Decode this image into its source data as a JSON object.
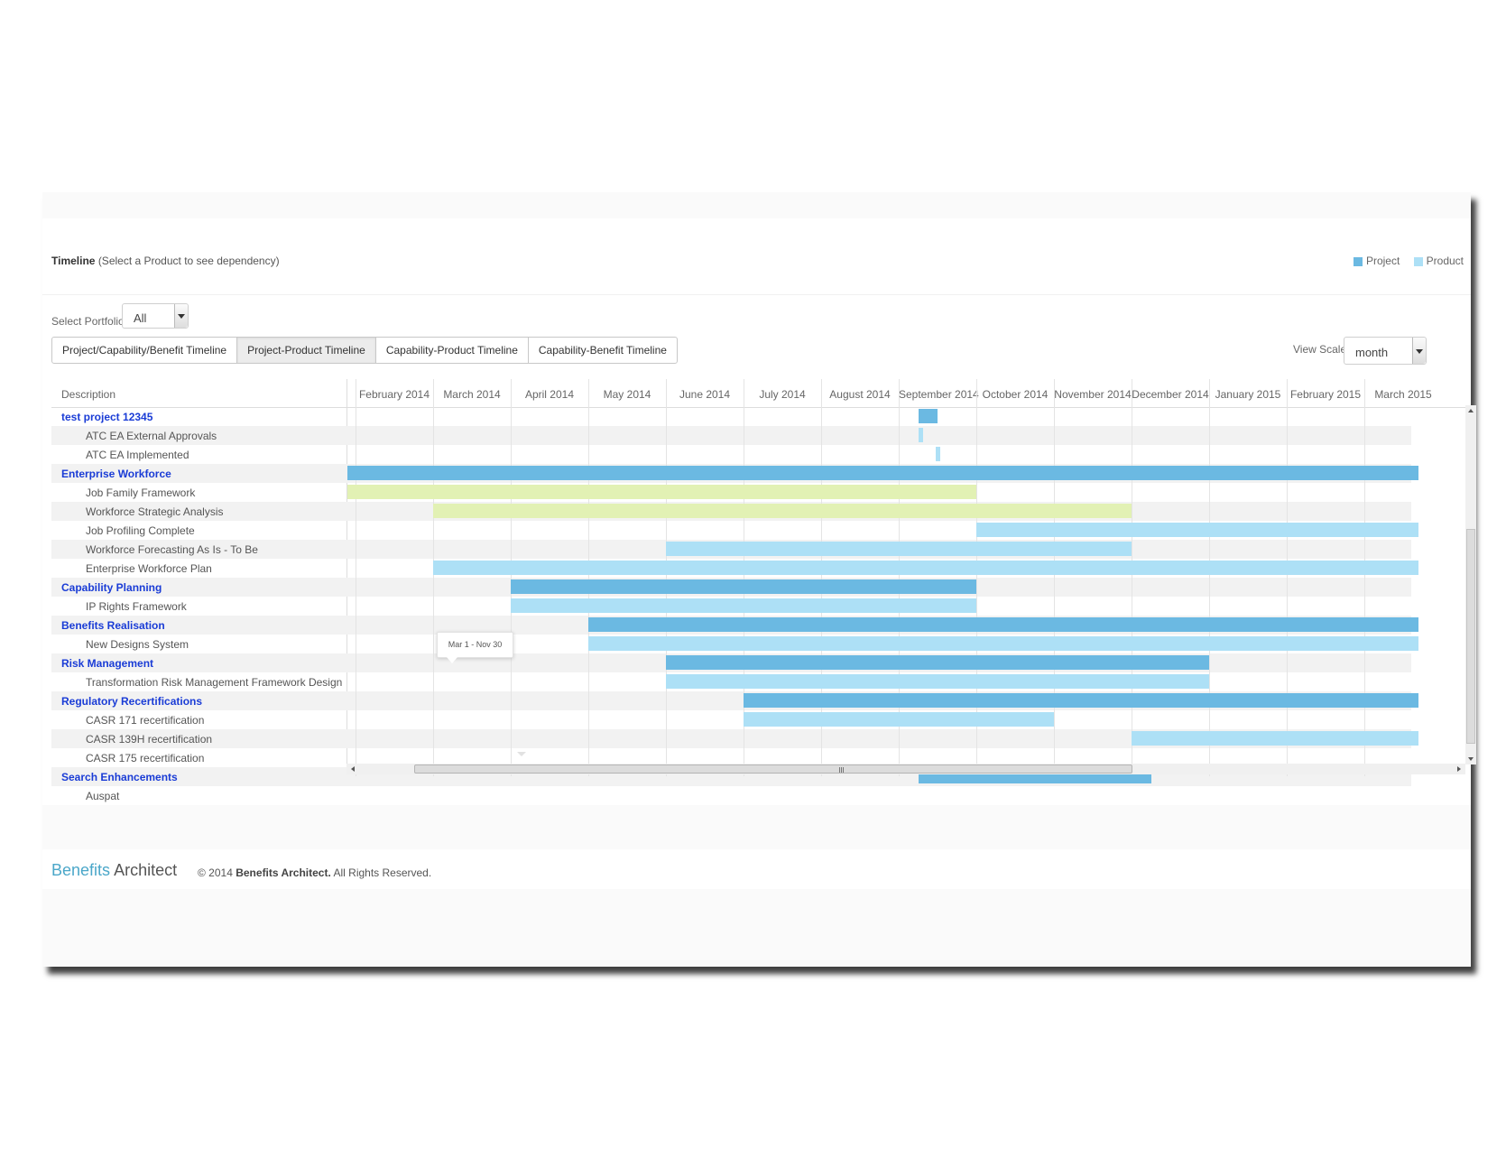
{
  "header": {
    "title": "Timeline",
    "subtitle": "(Select a Product to see dependency)"
  },
  "legend": [
    {
      "label": "Project",
      "color": "#6bb9e2"
    },
    {
      "label": "Product",
      "color": "#ade0f6"
    }
  ],
  "portfolio": {
    "label": "Select Portfolio",
    "value": "All"
  },
  "tabs": [
    {
      "label": "Project/Capability/Benefit Timeline",
      "active": false
    },
    {
      "label": "Project-Product Timeline",
      "active": true
    },
    {
      "label": "Capability-Product Timeline",
      "active": false
    },
    {
      "label": "Capability-Benefit Timeline",
      "active": false
    }
  ],
  "view_scale": {
    "label": "View Scale",
    "value": "month"
  },
  "gantt": {
    "description_header": "Description",
    "months": [
      "February 2014",
      "March 2014",
      "April 2014",
      "May 2014",
      "June 2014",
      "July 2014",
      "August 2014",
      "September 2014",
      "October 2014",
      "November 2014",
      "December 2014",
      "January 2015",
      "February 2015",
      "March 2015"
    ],
    "rows": [
      {
        "label": "test project 12345",
        "type": "project",
        "bars": [
          {
            "start": 7.25,
            "end": 7.5,
            "kind": "project"
          }
        ]
      },
      {
        "label": "ATC EA External Approvals",
        "type": "product",
        "bars": [
          {
            "start": 7.25,
            "end": 7.31,
            "kind": "product"
          }
        ]
      },
      {
        "label": "ATC EA Implemented",
        "type": "product",
        "bars": [
          {
            "start": 7.48,
            "end": 7.54,
            "kind": "product"
          }
        ]
      },
      {
        "label": "Enterprise Workforce",
        "type": "project",
        "bars": [
          {
            "start": -0.1,
            "end": 13.7,
            "kind": "project"
          }
        ]
      },
      {
        "label": "Job Family Framework",
        "type": "product",
        "bars": [
          {
            "start": -0.1,
            "end": 8.0,
            "kind": "highlight"
          }
        ]
      },
      {
        "label": "Workforce Strategic Analysis",
        "type": "product",
        "bars": [
          {
            "start": 1.0,
            "end": 10.0,
            "kind": "highlight"
          }
        ]
      },
      {
        "label": "Job Profiling Complete",
        "type": "product",
        "bars": [
          {
            "start": 8.0,
            "end": 13.7,
            "kind": "product"
          }
        ]
      },
      {
        "label": "Workforce Forecasting As Is - To Be",
        "type": "product",
        "bars": [
          {
            "start": 4.0,
            "end": 10.0,
            "kind": "product"
          }
        ]
      },
      {
        "label": "Enterprise Workforce Plan",
        "type": "product",
        "bars": [
          {
            "start": 1.0,
            "end": 13.7,
            "kind": "product"
          }
        ]
      },
      {
        "label": "Capability Planning",
        "type": "project",
        "bars": [
          {
            "start": 2.0,
            "end": 8.0,
            "kind": "project"
          }
        ]
      },
      {
        "label": "IP Rights Framework",
        "type": "product",
        "bars": [
          {
            "start": 2.0,
            "end": 8.0,
            "kind": "product"
          }
        ]
      },
      {
        "label": "Benefits Realisation",
        "type": "project",
        "bars": [
          {
            "start": 3.0,
            "end": 13.7,
            "kind": "project"
          }
        ]
      },
      {
        "label": "New Designs System",
        "type": "product",
        "bars": [
          {
            "start": 3.0,
            "end": 13.7,
            "kind": "product"
          }
        ]
      },
      {
        "label": "Risk Management",
        "type": "project",
        "bars": [
          {
            "start": 4.0,
            "end": 11.0,
            "kind": "project"
          }
        ]
      },
      {
        "label": "Transformation Risk Management Framework Design",
        "type": "product",
        "bars": [
          {
            "start": 4.0,
            "end": 11.0,
            "kind": "product"
          }
        ]
      },
      {
        "label": "Regulatory Recertifications",
        "type": "project",
        "bars": [
          {
            "start": 5.0,
            "end": 13.7,
            "kind": "project"
          }
        ]
      },
      {
        "label": "CASR 171 recertification",
        "type": "product",
        "bars": [
          {
            "start": 5.0,
            "end": 9.0,
            "kind": "product"
          }
        ]
      },
      {
        "label": "CASR 139H recertification",
        "type": "product",
        "bars": [
          {
            "start": 10.0,
            "end": 13.7,
            "kind": "product"
          }
        ]
      },
      {
        "label": "CASR 175 recertification",
        "type": "product",
        "bars": []
      },
      {
        "label": "Search Enhancements",
        "type": "project",
        "bars": [
          {
            "start": 7.25,
            "end": 10.25,
            "kind": "project"
          }
        ]
      },
      {
        "label": "Auspat",
        "type": "product",
        "bars": []
      }
    ],
    "tooltip": "Mar 1 - Nov 30"
  },
  "footer": {
    "brand_part1": "Benefits",
    "brand_part2": "Architect",
    "copyright_prefix": "© 2014",
    "copyright_company": "Benefits Architect.",
    "copyright_suffix": "All Rights Reserved."
  }
}
